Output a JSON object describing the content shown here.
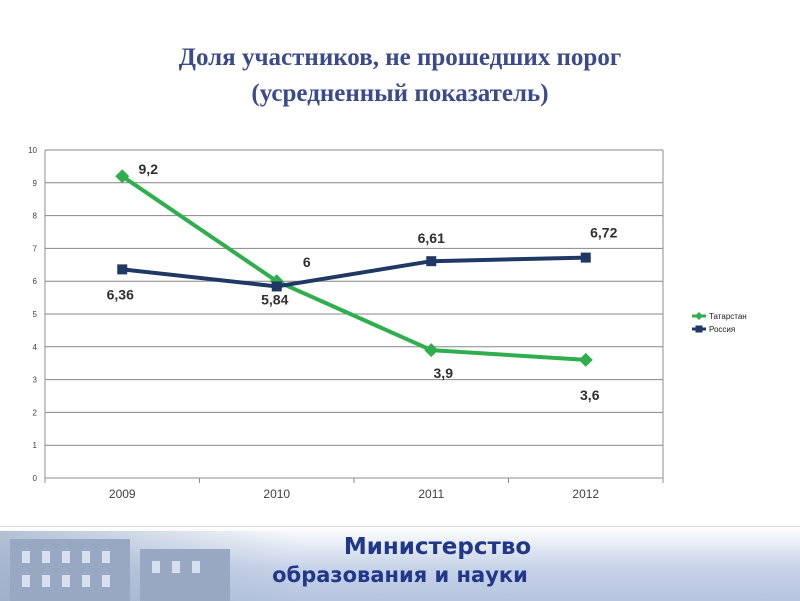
{
  "title": {
    "line1": "Доля участников, не прошедших порог",
    "line2": "(усредненный показатель)"
  },
  "chart_data": {
    "type": "line",
    "categories": [
      "2009",
      "2010",
      "2011",
      "2012"
    ],
    "ylim": [
      0,
      10
    ],
    "yticks": [
      "0",
      "1",
      "2",
      "3",
      "4",
      "5",
      "6",
      "7",
      "8",
      "9",
      "10"
    ],
    "grid": true,
    "legend_position": "right",
    "series": [
      {
        "name": "Татарстан",
        "color": "#2fae4e",
        "marker": "diamond",
        "values": [
          9.2,
          6,
          3.9,
          3.6
        ],
        "labels": [
          "9,2",
          "6",
          "3,9",
          "3,6"
        ]
      },
      {
        "name": "Россия",
        "color": "#1f3864",
        "marker": "square",
        "values": [
          6.36,
          5.84,
          6.61,
          6.72
        ],
        "labels": [
          "6,36",
          "5,84",
          "6,61",
          "6,72"
        ]
      }
    ]
  },
  "footer": {
    "line1": "Министерство",
    "line2": "образования и науки",
    "color": "#20378a"
  }
}
